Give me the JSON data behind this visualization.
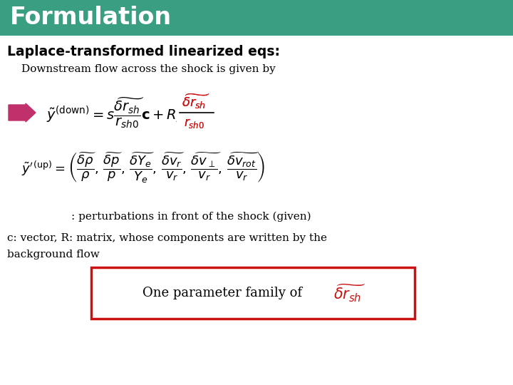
{
  "title": "Formulation",
  "title_bg_color": "#3a9e82",
  "title_text_color": "#ffffff",
  "bg_color": "#ffffff",
  "subtitle": "Laplace-transformed linearized eqs:",
  "subtitle_color": "#000000",
  "line1": "Downstream flow across the shock is given by",
  "arrow_color": "#c0306a",
  "red_color": "#cc1111",
  "box_color": "#cc1111",
  "note1": ": perturbations in front of the shock (given)",
  "note2": "c: vector, R: matrix, whose components are written by the",
  "note3": "background flow"
}
